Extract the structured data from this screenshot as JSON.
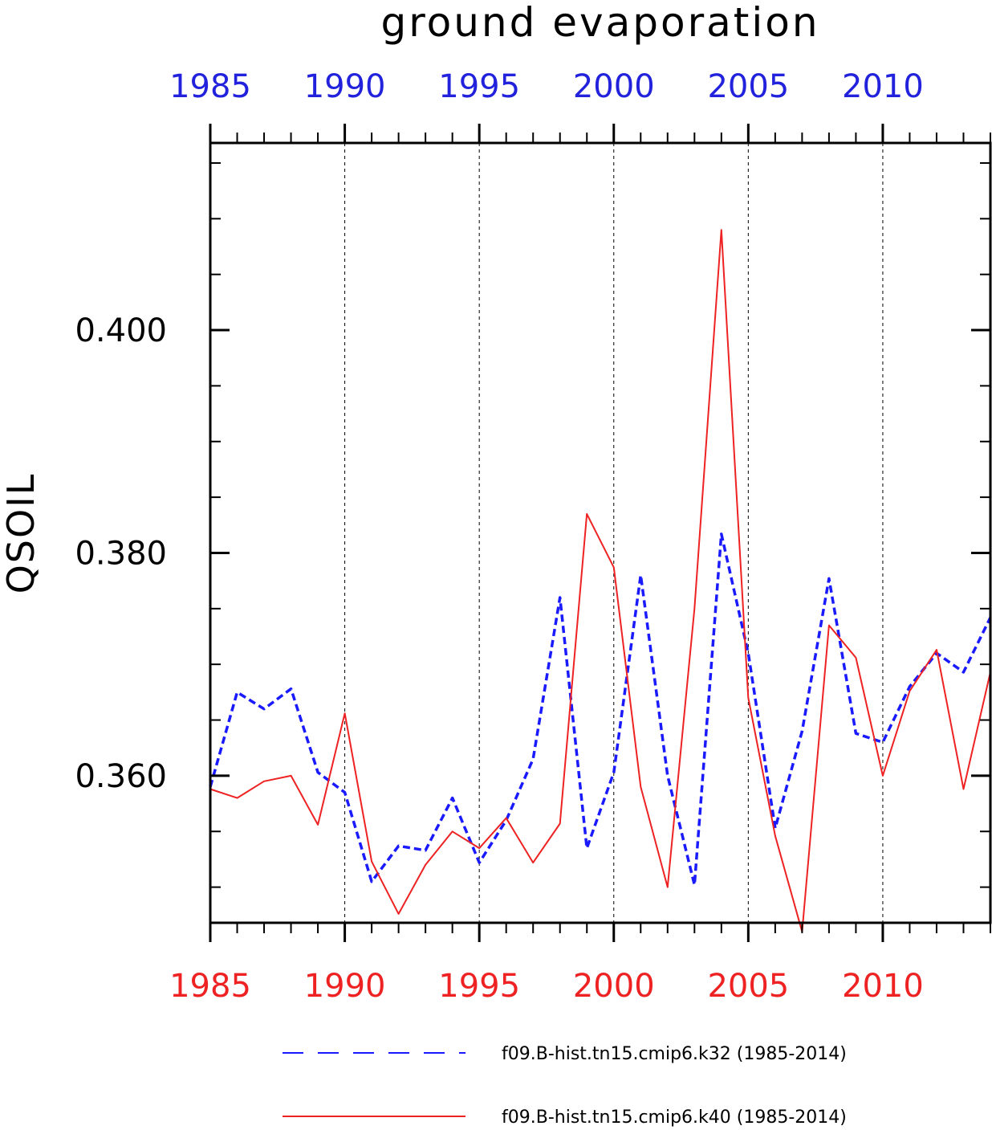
{
  "chart_data": {
    "type": "line",
    "title": "ground evaporation",
    "ylabel": "QSOIL",
    "xlabel": "",
    "xlim": [
      1985,
      2014
    ],
    "ylim": [
      0.3468,
      0.4168
    ],
    "x_tick_labels": [
      "1985",
      "1990",
      "1995",
      "2000",
      "2005",
      "2010"
    ],
    "y_tick_labels": [
      "0.360",
      "0.380",
      "0.400"
    ],
    "y_tick_values": [
      0.36,
      0.38,
      0.4
    ],
    "grid": "vertical dashed lines at labeled years",
    "legend_position": "bottom",
    "x": [
      1985,
      1986,
      1987,
      1988,
      1989,
      1990,
      1991,
      1992,
      1993,
      1994,
      1995,
      1996,
      1997,
      1998,
      1999,
      2000,
      2001,
      2002,
      2003,
      2004,
      2005,
      2006,
      2007,
      2008,
      2009,
      2010,
      2011,
      2012,
      2013,
      2014
    ],
    "series": [
      {
        "name": "f09.B-hist.tn15.cmip6.k32 (1985-2014)",
        "color": "#1a1aff",
        "style": "dashed",
        "values": [
          0.359,
          0.3675,
          0.366,
          0.3678,
          0.3603,
          0.3585,
          0.3505,
          0.3537,
          0.3533,
          0.358,
          0.3522,
          0.356,
          0.3615,
          0.376,
          0.3535,
          0.3603,
          0.378,
          0.36,
          0.3502,
          0.3817,
          0.371,
          0.3553,
          0.364,
          0.3777,
          0.3638,
          0.363,
          0.368,
          0.371,
          0.3693,
          0.3742
        ]
      },
      {
        "name": "f09.B-hist.tn15.cmip6.k40 (1985-2014)",
        "color": "#ee2222",
        "style": "solid",
        "values": [
          0.3588,
          0.358,
          0.3595,
          0.36,
          0.3556,
          0.3656,
          0.3523,
          0.3476,
          0.352,
          0.355,
          0.3535,
          0.3562,
          0.3522,
          0.3557,
          0.3835,
          0.3787,
          0.359,
          0.35,
          0.375,
          0.409,
          0.367,
          0.3546,
          0.346,
          0.3735,
          0.3706,
          0.36,
          0.3676,
          0.3713,
          0.3588,
          0.3693
        ]
      }
    ]
  }
}
